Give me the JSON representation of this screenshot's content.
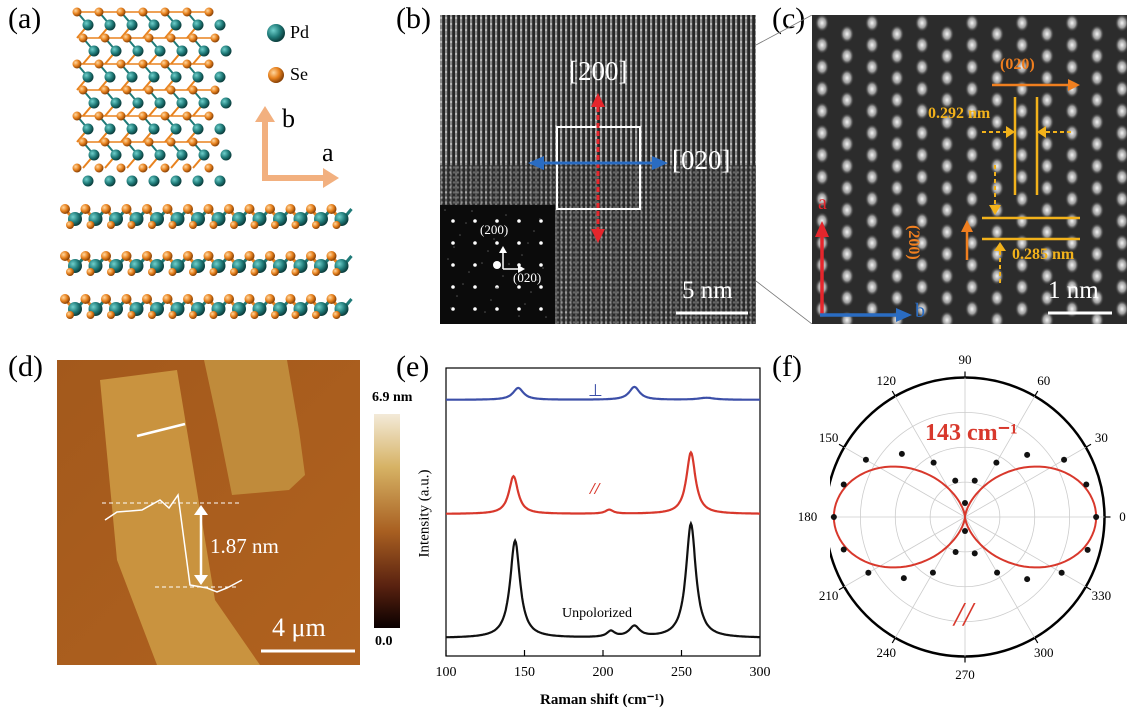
{
  "panels": {
    "a": {
      "label": "(a)",
      "legend": [
        {
          "element": "Pd",
          "color": "#1f7a78"
        },
        {
          "element": "Se",
          "color": "#e8821e"
        }
      ],
      "axis_b": "b",
      "axis_a": "a"
    },
    "b": {
      "label": "(b)",
      "dir_vertical": "[200]",
      "dir_horizontal": "[020]",
      "fft_label_200": "(200)",
      "fft_label_020": "(020)",
      "scale_bar": "5 nm"
    },
    "c": {
      "label": "(c)",
      "plane_020": "(020)",
      "plane_200": "(200)",
      "spacing_1": "0.292 nm",
      "spacing_2": "0.285 nm",
      "axis_a": "a",
      "axis_b": "b",
      "scale_bar": "1 nm"
    },
    "d": {
      "label": "(d)",
      "height_step": "1.87 nm",
      "colorbar_max": "6.9 nm",
      "colorbar_min": "0.0",
      "scale_bar": "4 μm"
    },
    "e": {
      "label": "(e)",
      "perp_label": "⊥",
      "para_label": "//",
      "unpol_label": "Unpolorized"
    },
    "f": {
      "label": "(f)",
      "peak_label": "143 cm⁻¹",
      "para_label": "//",
      "angle_labels": [
        "0",
        "30",
        "60",
        "90",
        "120",
        "150",
        "180",
        "210",
        "240",
        "270",
        "300",
        "330"
      ]
    }
  },
  "chart_data": [
    {
      "type": "line",
      "panel": "e",
      "xlabel": "Raman shift (cm⁻¹)",
      "ylabel": "Intensity (a.u.)",
      "xlim": [
        100,
        300
      ],
      "xticks": [
        100,
        150,
        200,
        250,
        300
      ],
      "series": [
        {
          "name": "⊥",
          "color": "#3c4fa8",
          "offset": 2.4,
          "peaks": [
            {
              "x": 146,
              "h": 0.12,
              "w": 4
            },
            {
              "x": 220,
              "h": 0.13,
              "w": 4
            },
            {
              "x": 266,
              "h": 0.02,
              "w": 6
            }
          ]
        },
        {
          "name": "//",
          "color": "#d8382c",
          "offset": 1.25,
          "peaks": [
            {
              "x": 143,
              "h": 0.38,
              "w": 3.5
            },
            {
              "x": 204,
              "h": 0.04,
              "w": 3
            },
            {
              "x": 256,
              "h": 0.62,
              "w": 3.5
            }
          ]
        },
        {
          "name": "Unpolorized",
          "color": "#111111",
          "offset": 0.0,
          "peaks": [
            {
              "x": 144,
              "h": 0.98,
              "w": 3.8
            },
            {
              "x": 205,
              "h": 0.06,
              "w": 3
            },
            {
              "x": 220,
              "h": 0.11,
              "w": 4
            },
            {
              "x": 256,
              "h": 1.15,
              "w": 3.8
            }
          ]
        }
      ]
    },
    {
      "type": "scatter",
      "panel": "f",
      "projection": "polar",
      "series": [
        {
          "name": "data",
          "color": "#111111",
          "theta": [
            0,
            15,
            30,
            45,
            60,
            75,
            90,
            105,
            120,
            135,
            150,
            165,
            180,
            195,
            210,
            225,
            240,
            255,
            270,
            285,
            300,
            315,
            330,
            345
          ],
          "r": [
            0.94,
            0.9,
            0.82,
            0.63,
            0.45,
            0.27,
            0.1,
            0.27,
            0.45,
            0.64,
            0.82,
            0.9,
            0.94,
            0.9,
            0.8,
            0.62,
            0.46,
            0.26,
            0.1,
            0.27,
            0.46,
            0.63,
            0.8,
            0.91
          ]
        },
        {
          "name": "fit",
          "color": "#d8382c",
          "function": "cos2",
          "amplitude": 0.94
        }
      ]
    }
  ]
}
